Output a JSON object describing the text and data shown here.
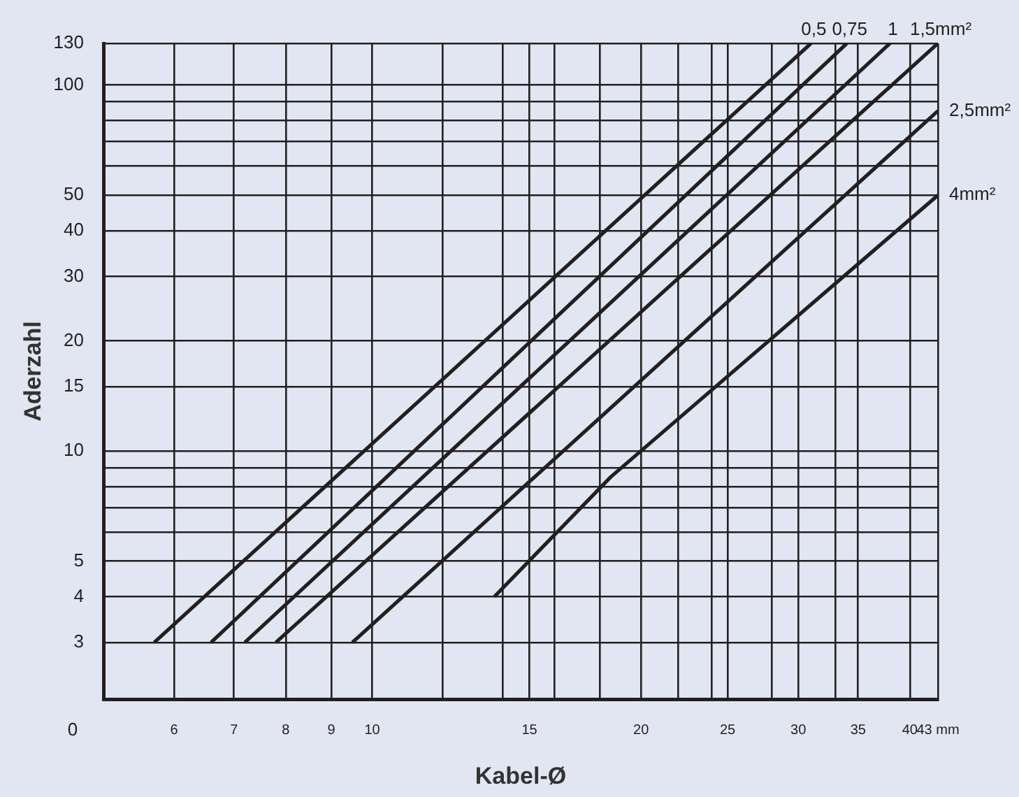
{
  "chart_data": {
    "type": "line",
    "xlabel": "Kabel-Ø",
    "ylabel": "Aderzahl",
    "log": "xy",
    "grid": true,
    "legend": false,
    "marker": "none",
    "line_style": "solid",
    "xlim": [
      5,
      43
    ],
    "xticks": [
      6,
      7,
      8,
      9,
      10,
      {
        "value": 12,
        "label": null
      },
      {
        "value": 14,
        "label": null
      },
      15,
      {
        "value": 16,
        "label": null
      },
      {
        "value": 18,
        "label": null
      },
      20,
      {
        "value": 22,
        "label": null
      },
      {
        "value": 24,
        "label": null
      },
      25,
      {
        "value": 28,
        "label": null
      },
      30,
      {
        "value": 33,
        "label": null
      },
      35,
      40,
      {
        "value": 43,
        "label": "43 mm"
      }
    ],
    "ylim": [
      2.1,
      130
    ],
    "yticks": [
      3,
      4,
      5,
      {
        "value": 6,
        "label": null
      },
      {
        "value": 7,
        "label": null
      },
      {
        "value": 8,
        "label": null
      },
      {
        "value": 9,
        "label": null
      },
      10,
      15,
      20,
      30,
      40,
      50,
      {
        "value": 60,
        "label": null
      },
      {
        "value": 70,
        "label": null
      },
      {
        "value": 80,
        "label": null
      },
      {
        "value": 90,
        "label": null
      },
      100,
      130
    ],
    "series": [
      {
        "name": "0,5",
        "color": "#231f20",
        "x": [
          5.7,
          31
        ],
        "values": [
          3,
          130
        ]
      },
      {
        "name": "0,75",
        "color": "#231f20",
        "x": [
          6.6,
          34
        ],
        "values": [
          3,
          130
        ]
      },
      {
        "name": "1",
        "color": "#231f20",
        "x": [
          7.2,
          38
        ],
        "values": [
          3,
          130
        ]
      },
      {
        "name": "1,5mm²",
        "color": "#231f20",
        "x": [
          7.8,
          43
        ],
        "values": [
          3,
          130
        ]
      },
      {
        "name": "2,5mm²",
        "color": "#231f20",
        "x": [
          9.5,
          43
        ],
        "values": [
          3,
          85
        ]
      },
      {
        "name": "4mm²",
        "color": "#231f20",
        "x": [
          13.7,
          18.5,
          43
        ],
        "values": [
          4,
          8.5,
          50
        ]
      }
    ],
    "annotations": [
      "0"
    ]
  }
}
